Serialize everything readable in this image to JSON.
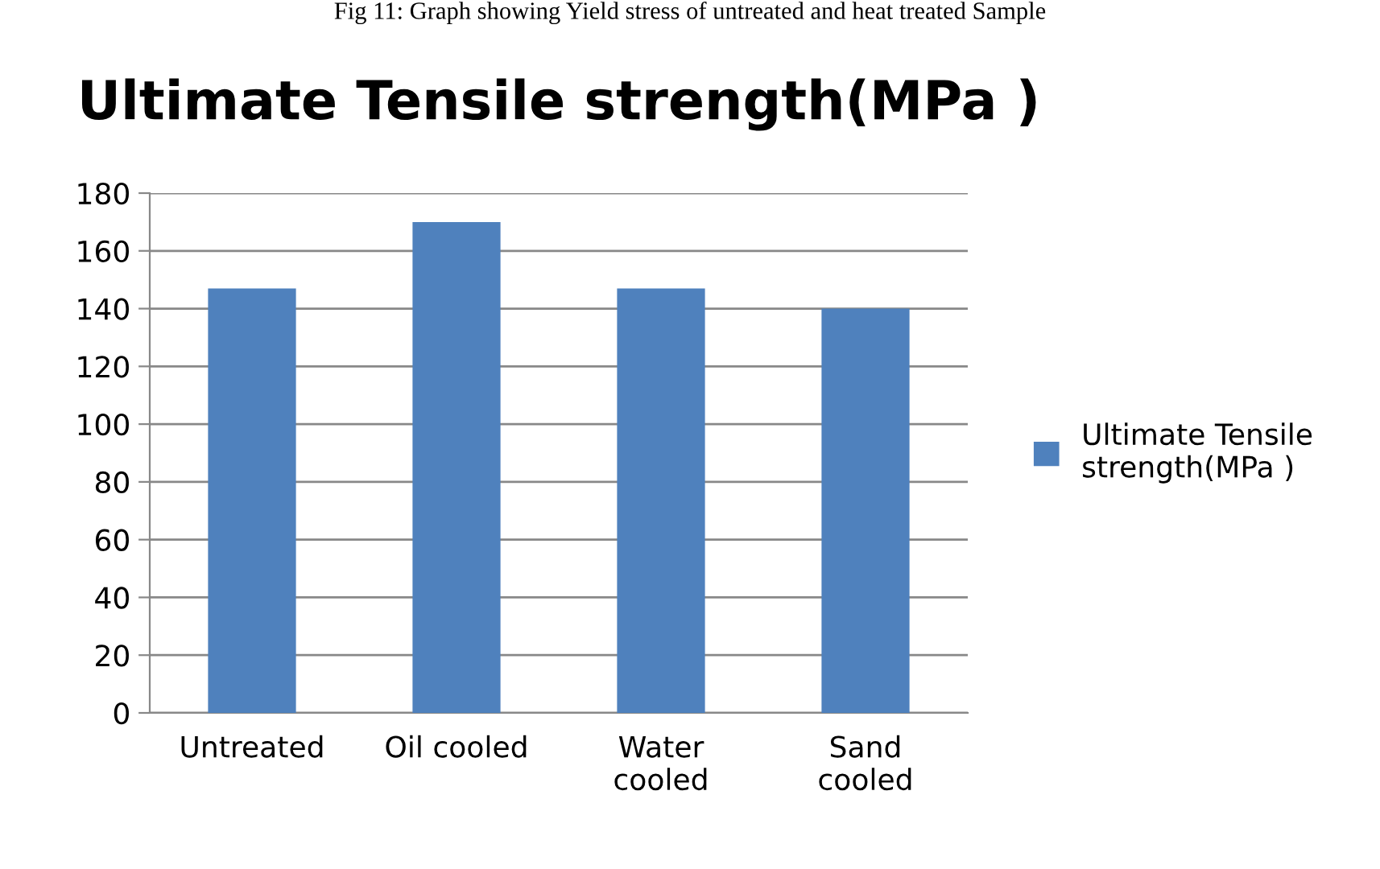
{
  "chart_data": {
    "type": "bar",
    "title": "Ultimate Tensile strength(MPa )",
    "annotations": [
      "Fig 11: Graph showing Yield stress of untreated and heat treated Sample"
    ],
    "categories": [
      "Untreated",
      "Oil cooled",
      "Water\ncooled",
      "Sand\ncooled"
    ],
    "series": [
      {
        "name": "Ultimate Tensile\nstrength(MPa )",
        "color": "#4f81bd",
        "values": [
          147,
          170,
          147,
          140
        ]
      }
    ],
    "ylim": [
      0,
      180
    ],
    "yticks": [
      0,
      20,
      40,
      60,
      80,
      100,
      120,
      140,
      160,
      180
    ],
    "grid": "y",
    "legend": "right"
  }
}
